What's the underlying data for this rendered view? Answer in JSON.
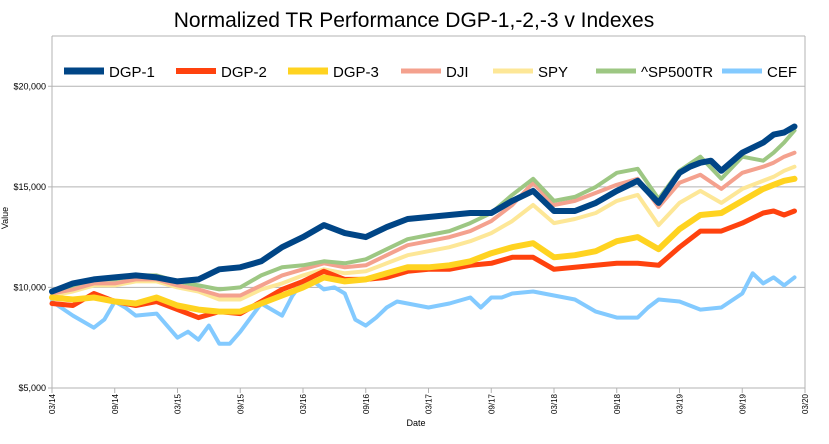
{
  "chart_data": {
    "type": "line",
    "title": "Normalized TR Performance DGP-1,-2,-3 v Indexes",
    "xlabel": "Date",
    "ylabel": "Value",
    "ylim": [
      5000,
      22500
    ],
    "yticks": [
      "$5,000",
      "$10,000",
      "$15,000",
      "$20,000"
    ],
    "ytick_values": [
      5000,
      10000,
      15000,
      20000
    ],
    "xticks": [
      "03/14",
      "09/14",
      "03/15",
      "09/15",
      "03/16",
      "09/16",
      "03/17",
      "09/17",
      "03/18",
      "09/18",
      "03/19",
      "09/19",
      "03/20"
    ],
    "xlim": [
      0,
      72
    ],
    "grid": true,
    "legend_position": "top",
    "series": [
      {
        "name": "DGP-1",
        "color": "#004586",
        "width": 6,
        "x": [
          0,
          2,
          4,
          6,
          8,
          10,
          12,
          14,
          16,
          18,
          20,
          22,
          24,
          26,
          28,
          30,
          32,
          34,
          36,
          38,
          40,
          42,
          44,
          46,
          48,
          50,
          52,
          54,
          56,
          58,
          60,
          61,
          62,
          63,
          64,
          66,
          68,
          69,
          70,
          71
        ],
        "values": [
          9800,
          10200,
          10400,
          10500,
          10600,
          10500,
          10300,
          10400,
          10900,
          11000,
          11300,
          12000,
          12500,
          13100,
          12700,
          12500,
          13000,
          13400,
          13500,
          13600,
          13700,
          13700,
          14300,
          14800,
          13800,
          13800,
          14200,
          14800,
          15300,
          14200,
          15700,
          16000,
          16200,
          16300,
          15800,
          16700,
          17200,
          17600,
          17700,
          18000
        ]
      },
      {
        "name": "DGP-2",
        "color": "#ff420e",
        "width": 5,
        "x": [
          0,
          2,
          4,
          6,
          8,
          10,
          12,
          14,
          16,
          18,
          20,
          22,
          24,
          26,
          28,
          30,
          32,
          34,
          36,
          38,
          40,
          42,
          44,
          46,
          48,
          50,
          52,
          54,
          56,
          58,
          60,
          62,
          64,
          66,
          68,
          69,
          70,
          71
        ],
        "values": [
          9200,
          9100,
          9700,
          9300,
          9100,
          9300,
          8900,
          8500,
          8800,
          8700,
          9300,
          9900,
          10300,
          10800,
          10400,
          10400,
          10500,
          10800,
          10900,
          10900,
          11100,
          11200,
          11500,
          11500,
          10900,
          11000,
          11100,
          11200,
          11200,
          11100,
          12000,
          12800,
          12800,
          13200,
          13700,
          13800,
          13600,
          13800
        ]
      },
      {
        "name": "DGP-3",
        "color": "#ffd320",
        "width": 6,
        "x": [
          0,
          2,
          4,
          6,
          8,
          10,
          12,
          14,
          16,
          18,
          20,
          22,
          24,
          26,
          28,
          30,
          32,
          34,
          36,
          38,
          40,
          42,
          44,
          46,
          48,
          50,
          52,
          54,
          56,
          58,
          60,
          62,
          64,
          66,
          68,
          69,
          70,
          71
        ],
        "values": [
          9500,
          9400,
          9500,
          9300,
          9200,
          9500,
          9100,
          8900,
          8800,
          8800,
          9200,
          9600,
          10000,
          10500,
          10300,
          10400,
          10700,
          11000,
          11000,
          11100,
          11300,
          11700,
          12000,
          12200,
          11500,
          11600,
          11800,
          12300,
          12500,
          11900,
          12900,
          13600,
          13700,
          14300,
          14900,
          15100,
          15300,
          15400
        ]
      },
      {
        "name": "DJI",
        "color": "#f4a18e",
        "width": 4,
        "x": [
          0,
          2,
          4,
          6,
          8,
          10,
          12,
          14,
          16,
          18,
          20,
          22,
          24,
          26,
          28,
          30,
          32,
          34,
          36,
          38,
          40,
          42,
          44,
          46,
          48,
          50,
          52,
          54,
          56,
          58,
          60,
          62,
          64,
          66,
          68,
          69,
          70,
          71
        ],
        "values": [
          9700,
          9900,
          10200,
          10200,
          10400,
          10400,
          10100,
          9900,
          9600,
          9600,
          10100,
          10600,
          10900,
          11200,
          11000,
          11100,
          11600,
          12100,
          12300,
          12500,
          12800,
          13300,
          14100,
          15200,
          14100,
          14300,
          14700,
          15100,
          15400,
          14000,
          15200,
          15600,
          14900,
          15700,
          16000,
          16200,
          16500,
          16700
        ]
      },
      {
        "name": "SPY",
        "color": "#fde797",
        "width": 4,
        "x": [
          0,
          2,
          4,
          6,
          8,
          10,
          12,
          14,
          16,
          18,
          20,
          22,
          24,
          26,
          28,
          30,
          32,
          34,
          36,
          38,
          40,
          42,
          44,
          46,
          48,
          50,
          52,
          54,
          56,
          58,
          60,
          62,
          64,
          66,
          68,
          69,
          70,
          71
        ],
        "values": [
          9600,
          9800,
          10100,
          10100,
          10300,
          10300,
          10000,
          9800,
          9400,
          9400,
          9900,
          10200,
          10600,
          10900,
          10700,
          10800,
          11200,
          11600,
          11800,
          12000,
          12300,
          12700,
          13300,
          14100,
          13200,
          13400,
          13700,
          14300,
          14600,
          13100,
          14200,
          14800,
          14200,
          14900,
          15300,
          15500,
          15800,
          16000
        ]
      },
      {
        "name": "^SP500TR",
        "color": "#9dc783",
        "width": 4,
        "x": [
          0,
          2,
          4,
          6,
          8,
          10,
          12,
          14,
          16,
          18,
          20,
          22,
          24,
          26,
          28,
          30,
          32,
          34,
          36,
          38,
          40,
          42,
          44,
          46,
          48,
          50,
          52,
          54,
          56,
          58,
          60,
          62,
          64,
          66,
          68,
          69,
          70,
          71
        ],
        "values": [
          9800,
          10100,
          10400,
          10400,
          10600,
          10600,
          10300,
          10100,
          9900,
          10000,
          10600,
          11000,
          11100,
          11300,
          11200,
          11400,
          11900,
          12400,
          12600,
          12800,
          13200,
          13700,
          14600,
          15400,
          14300,
          14500,
          15000,
          15700,
          15900,
          14400,
          15800,
          16500,
          15400,
          16500,
          16300,
          16700,
          17200,
          17800
        ]
      },
      {
        "name": "CEF",
        "color": "#83caff",
        "width": 4,
        "x": [
          0,
          2,
          4,
          5,
          6,
          7,
          8,
          10,
          12,
          13,
          14,
          15,
          16,
          17,
          18,
          20,
          22,
          23,
          24,
          25,
          26,
          27,
          28,
          29,
          30,
          31,
          32,
          33,
          34,
          36,
          38,
          40,
          41,
          42,
          43,
          44,
          46,
          48,
          50,
          52,
          54,
          56,
          57,
          58,
          60,
          62,
          64,
          66,
          67,
          68,
          69,
          70,
          71
        ],
        "values": [
          9300,
          8600,
          8000,
          8400,
          9300,
          9000,
          8600,
          8700,
          7500,
          7800,
          7400,
          8100,
          7200,
          7200,
          7800,
          9200,
          8600,
          9600,
          10300,
          10300,
          9900,
          10000,
          9700,
          8400,
          8100,
          8500,
          9000,
          9300,
          9200,
          9000,
          9200,
          9500,
          9000,
          9500,
          9500,
          9700,
          9800,
          9600,
          9400,
          8800,
          8500,
          8500,
          9000,
          9400,
          9300,
          8900,
          9000,
          9700,
          10700,
          10200,
          10500,
          10100,
          10500
        ]
      }
    ]
  }
}
